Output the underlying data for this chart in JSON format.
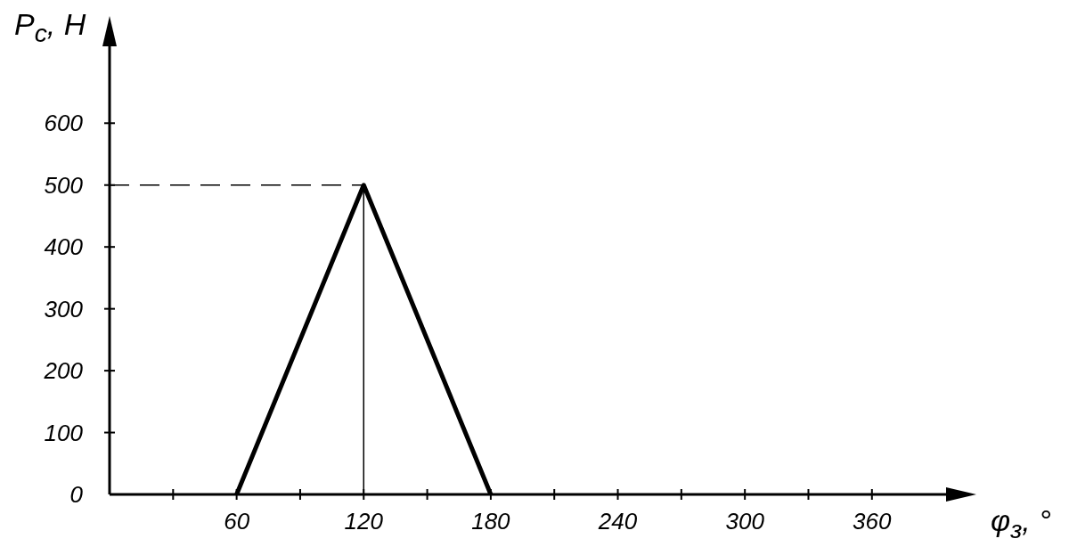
{
  "chart_data": {
    "type": "line",
    "xlabel": "φ$_{з}$, °",
    "ylabel": "P$_{с}$, Н",
    "x": [
      60,
      120,
      180
    ],
    "series": [
      {
        "color": "#000000",
        "values": [
          0,
          500,
          0
        ]
      }
    ],
    "xlim": [
      0,
      395
    ],
    "ylim": [
      0,
      730
    ],
    "xticks": [
      {
        "value": 30,
        "label": null
      },
      60,
      {
        "value": 90,
        "label": null
      },
      120,
      {
        "value": 150,
        "label": null
      },
      180,
      {
        "value": 210,
        "label": null
      },
      240,
      {
        "value": 270,
        "label": null
      },
      300,
      {
        "value": 330,
        "label": null
      },
      360
    ],
    "yticks": [
      {
        "value": 0,
        "label": "0"
      },
      100,
      200,
      300,
      400,
      500,
      600
    ],
    "ref_lines": [
      {
        "axis": "y",
        "value": 500,
        "line_style": "dashed",
        "color": "#000000"
      },
      {
        "axis": "x",
        "value": 120,
        "line_style": "solid",
        "color": "#000000"
      }
    ],
    "grid": false,
    "legend": false
  }
}
